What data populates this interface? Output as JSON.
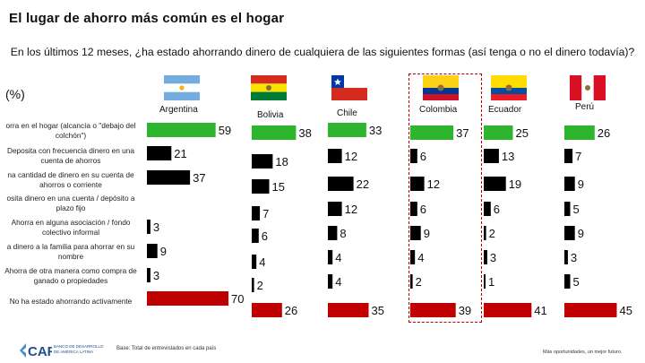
{
  "title": "El lugar de ahorro más común es el hogar",
  "subtitle": "En los últimos 12 meses, ¿ha estado ahorrando dinero de cualquiera de las siguientes formas (así tenga o no el dinero todavía)?",
  "unit": "(%)",
  "footer": {
    "logo_text": "CAF",
    "bank_name": "BANCO DE DESARROLLO DE AMÉRICA LATINA",
    "base_note": "Base: Total de entrevistados en cada país",
    "slogan": "Más oportunidades, un mejor futuro."
  },
  "colors": {
    "highlight": "#c00000",
    "secondary": "#000000",
    "positive": "#2db52d"
  },
  "chart_data": {
    "type": "bar",
    "title": "El lugar de ahorro más común es el hogar",
    "unit": "%",
    "categories": [
      "Ahorra en el hogar (alcancía o \"debajo del colchón\")",
      "Deposita con frecuencia dinero en una cuenta de ahorros",
      "Una cantidad de dinero en su cuenta de ahorros o corriente",
      "Deposita dinero en una cuenta / depósito a plazo fijo",
      "Ahorra en alguna asociación / fondo colectivo informal",
      "Da dinero a la familia para ahorrar en su nombre",
      "Ahorra de otra manera como compra de ganado o propiedades",
      "No ha estado ahorrando activamente"
    ],
    "category_labels_shown": [
      "orra en el hogar (alcancía o \"debajo del colchón\")",
      "Deposita con frecuencia dinero en una cuenta de ahorros",
      "na cantidad de dinero en su cuenta de ahorros o corriente",
      "osita dinero en una cuenta / depósito a plazo fijo",
      "Ahorra en alguna asociación / fondo colectivo informal",
      "a dinero a la familia para ahorrar en su nombre",
      "Ahorra de otra manera como compra de ganado o propiedades",
      "No ha estado ahorrando activamente"
    ],
    "series": [
      {
        "name": "Argentina",
        "flag": "argentina-flag",
        "values": [
          59,
          21,
          37,
          null,
          3,
          9,
          3,
          70
        ]
      },
      {
        "name": "Bolivia",
        "flag": "bolivia-flag",
        "values": [
          38,
          18,
          15,
          7,
          6,
          4,
          2,
          26
        ]
      },
      {
        "name": "Chile",
        "flag": "chile-flag",
        "values": [
          33,
          12,
          22,
          12,
          8,
          4,
          4,
          35
        ]
      },
      {
        "name": "Colombia",
        "flag": "colombia-flag",
        "values": [
          37,
          6,
          12,
          6,
          9,
          4,
          2,
          39
        ]
      },
      {
        "name": "Ecuador",
        "flag": "ecuador-flag",
        "values": [
          25,
          13,
          19,
          6,
          2,
          3,
          1,
          41
        ]
      },
      {
        "name": "Perú",
        "flag": "peru-flag",
        "values": [
          26,
          7,
          9,
          5,
          9,
          3,
          5,
          45
        ]
      }
    ],
    "highlighted_series": "Colombia"
  }
}
